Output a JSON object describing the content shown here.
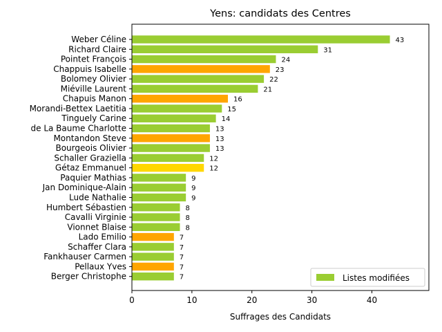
{
  "chart_data": {
    "type": "bar",
    "orientation": "horizontal",
    "title": "Yens: candidats des Centres",
    "xlabel": "Suffrages des Candidats",
    "ylabel": "",
    "xlim": [
      0,
      49.5
    ],
    "xticks": [
      0,
      10,
      20,
      30,
      40
    ],
    "grid": false,
    "legend": {
      "placement": "bottom-right",
      "entries": [
        {
          "label": "Listes modifiées",
          "color": "#9ACD32"
        }
      ]
    },
    "colors": {
      "green": "#9ACD32",
      "orange": "#FFA500",
      "yellow": "#FFD700"
    },
    "categories": [
      "Weber Céline",
      "Richard Claire",
      "Pointet François",
      "Chappuis Isabelle",
      "Bolomey Olivier",
      "Miéville Laurent",
      "Chapuis Manon",
      "Morandi-Bettex Laetitia",
      "Tinguely Carine",
      "de La Baume Charlotte",
      "Montandon Steve",
      "Bourgeois Olivier",
      "Schaller Graziella",
      "Gétaz Emmanuel",
      "Paquier Mathias",
      "Jan Dominique-Alain",
      "Lude Nathalie",
      "Humbert Sébastien",
      "Cavalli Virginie",
      "Vionnet Blaise",
      "Lado Emilio",
      "Schaffer Clara",
      "Fankhauser Carmen",
      "Pellaux Yves",
      "Berger Christophe"
    ],
    "values": [
      43,
      31,
      24,
      23,
      22,
      21,
      16,
      15,
      14,
      13,
      13,
      13,
      12,
      12,
      9,
      9,
      9,
      8,
      8,
      8,
      7,
      7,
      7,
      7,
      7
    ],
    "bar_colors": [
      "green",
      "green",
      "green",
      "orange",
      "green",
      "green",
      "orange",
      "green",
      "green",
      "green",
      "orange",
      "green",
      "green",
      "yellow",
      "green",
      "green",
      "green",
      "green",
      "green",
      "green",
      "orange",
      "green",
      "green",
      "orange",
      "green"
    ]
  }
}
